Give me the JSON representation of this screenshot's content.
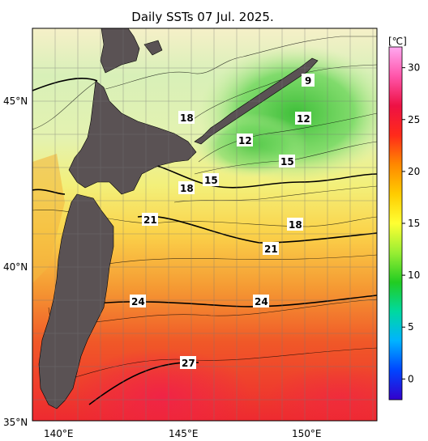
{
  "title": "Daily SSTs 07 Jul. 2025.",
  "colorbar": {
    "unit": "[℃]",
    "ticks": [
      "0",
      "5",
      "10",
      "15",
      "20",
      "25",
      "30"
    ],
    "stops": [
      "#3300cc",
      "#0044ff",
      "#00b3ff",
      "#00d9a0",
      "#22cc22",
      "#99ee33",
      "#ffff33",
      "#ffcc00",
      "#ff8800",
      "#ff2a1a",
      "#ee1144",
      "#ff55aa",
      "#ffa8f0"
    ]
  },
  "axes": {
    "lat_labels": [
      "45°N",
      "40°N",
      "35°N"
    ],
    "lon_labels": [
      "140°E",
      "145°E",
      "150°E"
    ]
  },
  "contour_labels": [
    "9",
    "12",
    "12",
    "18",
    "15",
    "15",
    "18",
    "18",
    "21",
    "21",
    "24",
    "24",
    "27"
  ],
  "colors": {
    "land": "#5a5254",
    "background": "#ffffff"
  }
}
